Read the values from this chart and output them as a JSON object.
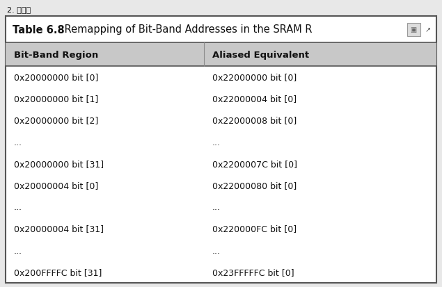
{
  "super_title": "2. 映射表",
  "table_title_bold": "Table 6.8",
  "table_title_normal": " Remapping of Bit-Band Addresses in the SRAM R",
  "col1_header": "Bit-Band Region",
  "col2_header": "Aliased Equivalent",
  "rows": [
    [
      "0x20000000 bit [0]",
      "0x22000000 bit [0]"
    ],
    [
      "0x20000000 bit [1]",
      "0x22000004 bit [0]"
    ],
    [
      "0x20000000 bit [2]",
      "0x22000008 bit [0]"
    ],
    [
      "...",
      "..."
    ],
    [
      "0x20000000 bit [31]",
      "0x2200007C bit [0]"
    ],
    [
      "0x20000004 bit [0]",
      "0x22000080 bit [0]"
    ],
    [
      "...",
      "..."
    ],
    [
      "0x20000004 bit [31]",
      "0x220000FC bit [0]"
    ],
    [
      "...",
      "..."
    ],
    [
      "0x200FFFFC bit [31]",
      "0x23FFFFFC bit [0]"
    ]
  ],
  "fig_bg": "#e8e8e8",
  "table_bg": "#ffffff",
  "header_bg": "#c8c8c8",
  "title_bg": "#ffffff",
  "border_color": "#555555",
  "divider_color": "#888888",
  "text_color": "#111111",
  "super_title_fontsize": 8,
  "title_fontsize": 10.5,
  "header_fontsize": 9.5,
  "row_fontsize": 9,
  "fig_width": 6.35,
  "fig_height": 4.14
}
